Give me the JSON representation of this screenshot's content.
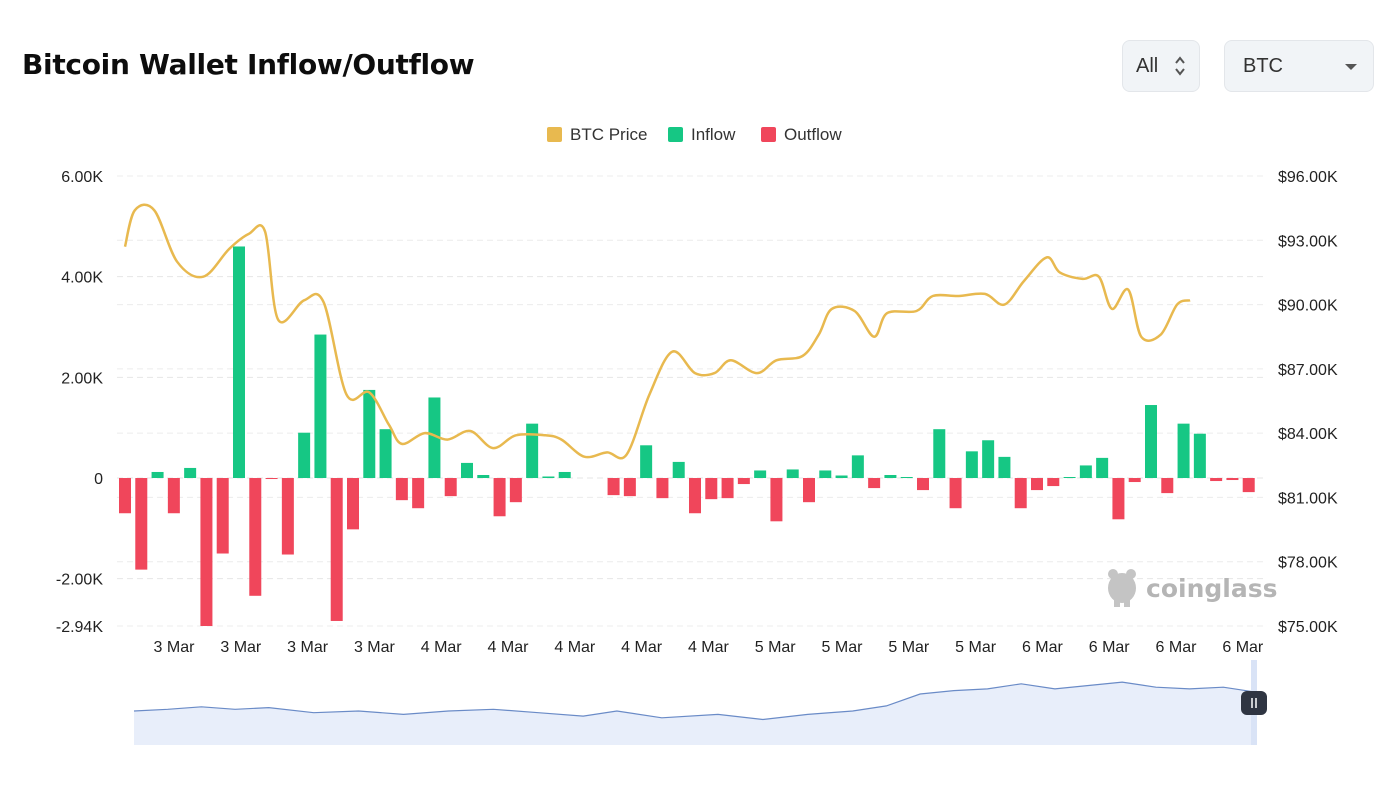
{
  "header": {
    "title": "Bitcoin Wallet Inflow/Outflow",
    "range_select": "All",
    "coin_select": "BTC"
  },
  "watermark": "coinglass",
  "chart_data": {
    "type": "bar",
    "legend": [
      {
        "name": "BTC Price",
        "color": "#e8b94f"
      },
      {
        "name": "Inflow",
        "color": "#16c784"
      },
      {
        "name": "Outflow",
        "color": "#f0465b"
      }
    ],
    "left_axis": {
      "ticks": [
        "6.00K",
        "4.00K",
        "2.00K",
        "0",
        "-2.00K",
        "-2.94K"
      ],
      "min": -2940,
      "max": 6000
    },
    "right_axis": {
      "ticks": [
        "$96.00K",
        "$93.00K",
        "$90.00K",
        "$87.00K",
        "$84.00K",
        "$81.00K",
        "$78.00K",
        "$75.00K"
      ],
      "min": 75000,
      "max": 96000
    },
    "x_ticks": [
      "3 Mar",
      "3 Mar",
      "3 Mar",
      "3 Mar",
      "4 Mar",
      "4 Mar",
      "4 Mar",
      "4 Mar",
      "4 Mar",
      "5 Mar",
      "5 Mar",
      "5 Mar",
      "5 Mar",
      "6 Mar",
      "6 Mar",
      "6 Mar",
      "6 Mar"
    ],
    "grid": true,
    "legend_position": "top-center",
    "flows": [
      -700,
      -1820,
      120,
      -700,
      200,
      -2940,
      -1500,
      4600,
      -2340,
      -20,
      -1520,
      900,
      2850,
      -2840,
      -1020,
      1750,
      970,
      -440,
      -600,
      1600,
      -360,
      300,
      60,
      -760,
      -480,
      1080,
      30,
      120,
      0,
      0,
      -340,
      -360,
      650,
      -400,
      320,
      -700,
      -420,
      -400,
      -120,
      150,
      -860,
      170,
      -480,
      150,
      50,
      450,
      -200,
      60,
      20,
      -240,
      970,
      -600,
      530,
      750,
      420,
      -600,
      -240,
      -160,
      20,
      250,
      400,
      -820,
      -80,
      1450,
      -300,
      1080,
      880,
      -60,
      -40,
      -280
    ],
    "price": [
      [
        0,
        92700
      ],
      [
        0.3,
        94400
      ],
      [
        0.9,
        94400
      ],
      [
        1.6,
        92000
      ],
      [
        2.4,
        91300
      ],
      [
        3.2,
        92600
      ],
      [
        3.8,
        93300
      ],
      [
        4.3,
        93400
      ],
      [
        4.7,
        89300
      ],
      [
        5.5,
        90200
      ],
      [
        6.1,
        90100
      ],
      [
        6.8,
        85800
      ],
      [
        7.5,
        85900
      ],
      [
        8.1,
        84400
      ],
      [
        8.5,
        83500
      ],
      [
        9.2,
        84000
      ],
      [
        9.9,
        83700
      ],
      [
        10.6,
        84100
      ],
      [
        11.3,
        83300
      ],
      [
        12.0,
        83900
      ],
      [
        12.9,
        83900
      ],
      [
        13.4,
        83700
      ],
      [
        14.1,
        82900
      ],
      [
        14.8,
        83100
      ],
      [
        15.4,
        83000
      ],
      [
        16.1,
        85800
      ],
      [
        16.8,
        87800
      ],
      [
        17.5,
        86800
      ],
      [
        18.1,
        86800
      ],
      [
        18.6,
        87400
      ],
      [
        19.4,
        86800
      ],
      [
        20.0,
        87400
      ],
      [
        20.8,
        87600
      ],
      [
        21.3,
        88600
      ],
      [
        21.7,
        89800
      ],
      [
        22.4,
        89700
      ],
      [
        23.0,
        88500
      ],
      [
        23.4,
        89600
      ],
      [
        24.3,
        89700
      ],
      [
        24.8,
        90400
      ],
      [
        25.6,
        90400
      ],
      [
        26.4,
        90500
      ],
      [
        27.0,
        90000
      ],
      [
        27.6,
        91100
      ],
      [
        28.3,
        92200
      ],
      [
        28.7,
        91500
      ],
      [
        29.4,
        91200
      ],
      [
        29.9,
        91300
      ],
      [
        30.3,
        89800
      ],
      [
        30.8,
        90700
      ],
      [
        31.2,
        88500
      ],
      [
        31.8,
        88600
      ],
      [
        32.3,
        90000
      ],
      [
        32.7,
        90200
      ]
    ],
    "navigator_price": [
      [
        0,
        0.4
      ],
      [
        0.03,
        0.42
      ],
      [
        0.06,
        0.45
      ],
      [
        0.09,
        0.42
      ],
      [
        0.12,
        0.44
      ],
      [
        0.16,
        0.38
      ],
      [
        0.2,
        0.4
      ],
      [
        0.24,
        0.36
      ],
      [
        0.28,
        0.4
      ],
      [
        0.32,
        0.42
      ],
      [
        0.36,
        0.38
      ],
      [
        0.4,
        0.34
      ],
      [
        0.43,
        0.4
      ],
      [
        0.47,
        0.32
      ],
      [
        0.52,
        0.36
      ],
      [
        0.56,
        0.3
      ],
      [
        0.6,
        0.36
      ],
      [
        0.64,
        0.4
      ],
      [
        0.67,
        0.46
      ],
      [
        0.7,
        0.6
      ],
      [
        0.73,
        0.64
      ],
      [
        0.76,
        0.66
      ],
      [
        0.79,
        0.72
      ],
      [
        0.82,
        0.66
      ],
      [
        0.85,
        0.7
      ],
      [
        0.88,
        0.74
      ],
      [
        0.91,
        0.68
      ],
      [
        0.94,
        0.66
      ],
      [
        0.97,
        0.68
      ],
      [
        1.0,
        0.62
      ]
    ]
  }
}
